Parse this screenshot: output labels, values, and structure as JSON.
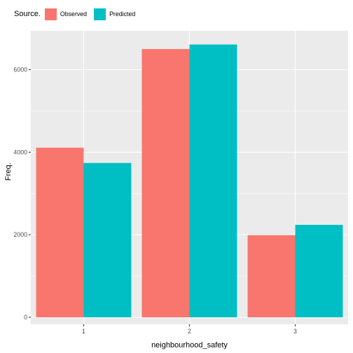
{
  "chart_data": {
    "type": "bar",
    "xlabel": "neighbourhood_safety",
    "ylabel": "Freq.",
    "categories": [
      "1",
      "2",
      "3"
    ],
    "series": [
      {
        "name": "Observed",
        "values": [
          4110,
          6500,
          1990
        ]
      },
      {
        "name": "Predicted",
        "values": [
          3740,
          6610,
          2240
        ]
      }
    ],
    "ylim": [
      0,
      6900
    ],
    "yticks": [
      0,
      2000,
      4000,
      6000
    ],
    "ytick_labels": [
      "0",
      "2000",
      "4000",
      "6000"
    ],
    "grid": true,
    "legend": {
      "title": "Source.",
      "position": "top-left"
    },
    "colors": {
      "Observed": "#F8766D",
      "Predicted": "#00BFC4",
      "panel": "#EBEBEB",
      "grid": "#FFFFFF"
    }
  }
}
